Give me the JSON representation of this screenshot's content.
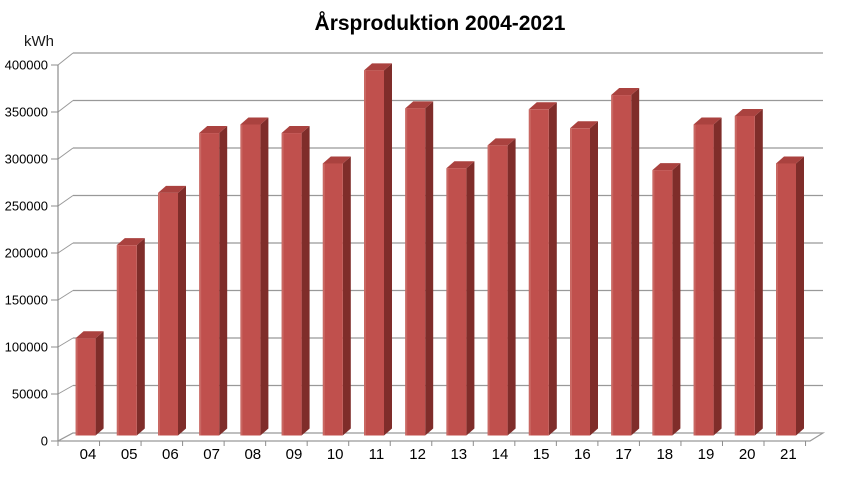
{
  "title": "Årsproduktion 2004-2021",
  "y_axis_unit": "kWh",
  "chart_data": {
    "type": "bar",
    "style": "3d-bar-excel",
    "title": "Årsproduktion 2004-2021",
    "ylabel": "kWh",
    "xlabel": "",
    "categories": [
      "04",
      "05",
      "06",
      "07",
      "08",
      "09",
      "10",
      "11",
      "12",
      "13",
      "14",
      "15",
      "16",
      "17",
      "18",
      "19",
      "20",
      "21"
    ],
    "values": [
      105000,
      203000,
      258000,
      321000,
      330000,
      321000,
      289000,
      387000,
      347000,
      284000,
      308000,
      346000,
      326000,
      361000,
      282000,
      330000,
      339000,
      289000
    ],
    "ylim": [
      0,
      400000
    ],
    "yticks": [
      0,
      50000,
      100000,
      150000,
      200000,
      250000,
      300000,
      350000,
      400000
    ],
    "grid": true,
    "legend": "none",
    "colors": {
      "bar_front": "#c0504d",
      "bar_edge_highlight": "#d07b76",
      "bar_side": "#7f2d2a",
      "bar_top": "#aa423f",
      "gridline": "#999999",
      "axis": "#8c8c8c",
      "text": "#000000",
      "background": "#ffffff"
    }
  }
}
